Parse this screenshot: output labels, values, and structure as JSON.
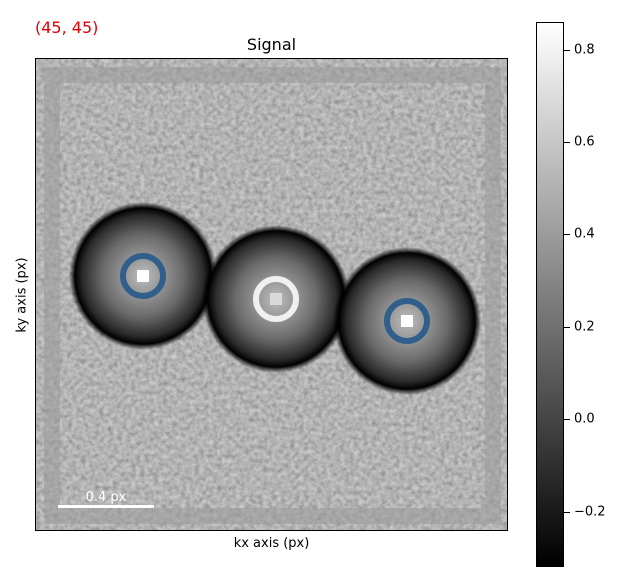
{
  "coordinate_readout": "(45, 45)",
  "colors": {
    "readout": "#e00000",
    "marker_blue": "#2f5f8a",
    "marker_white": "#f0f0f0"
  },
  "plot": {
    "title": "Signal",
    "xlabel": "kx axis (px)",
    "ylabel": "ky axis (px)",
    "scalebar_label": "0.4 px",
    "cmap": "gray"
  },
  "colorbar": {
    "ticks": [
      {
        "value": 0.8,
        "label": "0.8"
      },
      {
        "value": 0.6,
        "label": "0.6"
      },
      {
        "value": 0.4,
        "label": "0.4"
      },
      {
        "value": 0.2,
        "label": "0.2"
      },
      {
        "value": 0.0,
        "label": "0.0"
      },
      {
        "value": -0.2,
        "label": "−0.2"
      }
    ],
    "range": [
      -0.32,
      0.86
    ]
  }
}
